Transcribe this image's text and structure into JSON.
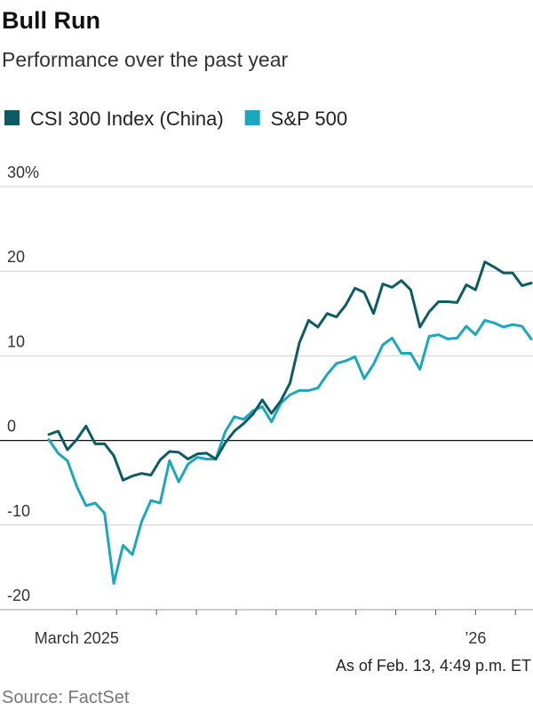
{
  "chart_data": {
    "type": "line",
    "title": "Bull Run",
    "subtitle": "Performance over the past year",
    "note": "As of Feb. 13, 4:49 p.m. ET",
    "source": "Source: FactSet",
    "categories": [
      null,
      null,
      null,
      "March 2025",
      null,
      null,
      null,
      null,
      null,
      null,
      null,
      null,
      null,
      null,
      null,
      null,
      null,
      null,
      null,
      null,
      null,
      null,
      null,
      null,
      null,
      null,
      null,
      null,
      null,
      null,
      null,
      null,
      null,
      null,
      null,
      null,
      null,
      null,
      null,
      null,
      null,
      null,
      null,
      null,
      null,
      null,
      "’26",
      null,
      null,
      null,
      null,
      null,
      null
    ],
    "series": [
      {
        "name": "CSI 300 Index (China)",
        "color": "#0d5c63",
        "values": [
          0.7,
          1.1,
          -1.1,
          0.1,
          1.7,
          -0.4,
          -0.4,
          -1.8,
          -4.7,
          -4.2,
          -3.9,
          -4.1,
          -2.3,
          -1.3,
          -1.4,
          -2.2,
          -1.6,
          -1.5,
          -2.2,
          -0.3,
          1.1,
          2.0,
          3.1,
          4.8,
          3.2,
          4.7,
          6.8,
          11.5,
          14.2,
          13.4,
          15.0,
          14.6,
          16.0,
          18.0,
          17.5,
          15.0,
          18.5,
          18.1,
          18.9,
          17.8,
          13.4,
          15.2,
          16.4,
          16.4,
          16.3,
          18.4,
          17.8,
          21.1,
          20.5,
          19.8,
          19.8,
          18.3,
          18.6
        ]
      },
      {
        "name": "S&P 500",
        "color": "#1aa7bf",
        "values": [
          0.1,
          -1.5,
          -2.4,
          -5.4,
          -7.7,
          -7.4,
          -8.6,
          -16.9,
          -12.4,
          -13.5,
          -9.6,
          -7.1,
          -7.4,
          -2.4,
          -4.9,
          -2.8,
          -2.0,
          -2.2,
          -2.2,
          1.0,
          2.8,
          2.5,
          3.5,
          4.0,
          2.2,
          4.4,
          5.4,
          5.9,
          5.9,
          6.2,
          7.8,
          9.1,
          9.4,
          9.9,
          7.3,
          9.0,
          11.3,
          12.1,
          10.3,
          10.3,
          8.4,
          12.3,
          12.5,
          12.0,
          12.1,
          13.5,
          12.5,
          14.2,
          13.9,
          13.4,
          13.7,
          13.5,
          12.0
        ]
      }
    ],
    "ylim": [
      -20,
      30
    ],
    "yticks": [
      {
        "value": 30,
        "label": "30%"
      },
      20,
      10,
      0,
      -10,
      -20
    ],
    "grid": true
  }
}
